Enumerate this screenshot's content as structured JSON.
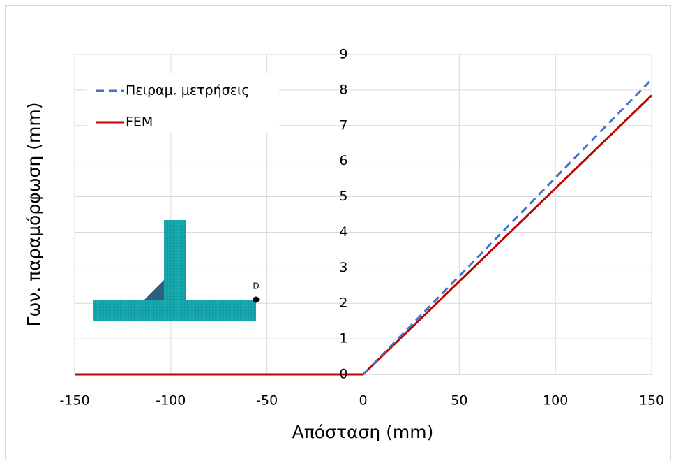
{
  "chart_data": {
    "type": "line",
    "x_label": "Απόσταση (mm)",
    "y_label": "Γων. παραμόρφωση (mm)",
    "xlim": [
      -150,
      150
    ],
    "xticks": [
      -150,
      -100,
      -50,
      0,
      50,
      100,
      150
    ],
    "ylim": [
      0,
      9
    ],
    "yticks": [
      0,
      1,
      2,
      3,
      4,
      5,
      6,
      7,
      8,
      9
    ],
    "grid": true,
    "legend": "upper left",
    "annotations": [
      "D"
    ],
    "series": [
      {
        "name": "Πειραμ. μετρήσεις",
        "color": "#4472c4",
        "dash": true,
        "x": [
          0,
          150
        ],
        "values": [
          0,
          8.3
        ]
      },
      {
        "name": "FEM",
        "color": "#c00000",
        "dash": false,
        "x": [
          -150,
          0,
          150
        ],
        "values": [
          0,
          0,
          7.85
        ]
      }
    ]
  }
}
